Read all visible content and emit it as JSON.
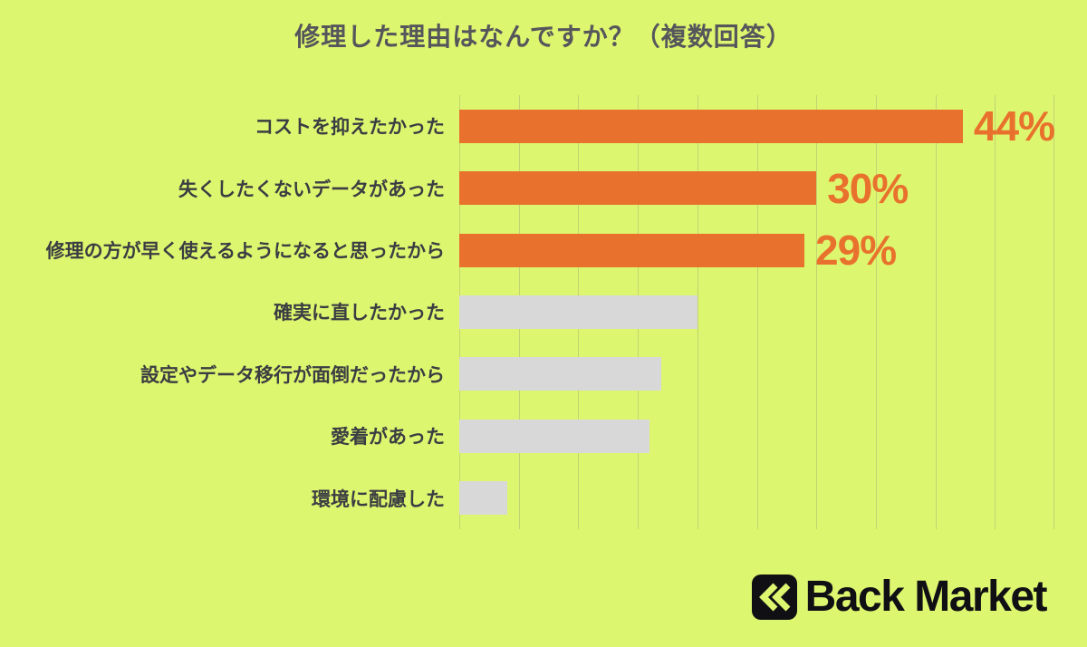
{
  "title": "修理した理由はなんですか？（複数回答）",
  "colors": {
    "background": "#DDF66F",
    "bar_highlight": "#E8722D",
    "bar_muted": "#D8D8D8",
    "value_label": "#E8722D",
    "title_text": "#54565B",
    "category_text": "#3A3D42",
    "gridline": "rgba(160,170,120,0.45)",
    "logo": "#101014"
  },
  "chart_data": {
    "type": "bar",
    "orientation": "horizontal",
    "title": "修理した理由はなんですか？（複数回答）",
    "xlabel": "",
    "ylabel": "",
    "xlim": [
      0,
      50
    ],
    "grid_step": 5,
    "grid": true,
    "legend": false,
    "categories": [
      "コストを抑えたかった",
      "失くしたくないデータがあった",
      "修理の方が早く使えるようになると思ったから",
      "確実に直したかった",
      "設定やデータ移行が面倒だったから",
      "愛着があった",
      "環境に配慮した"
    ],
    "values": [
      44,
      30,
      29,
      20,
      17,
      16,
      4
    ],
    "items": [
      {
        "label": "コストを抑えたかった",
        "value": 44,
        "value_label": "44%",
        "emphasis": true
      },
      {
        "label": "失くしたくないデータがあった",
        "value": 30,
        "value_label": "30%",
        "emphasis": true
      },
      {
        "label": "修理の方が早く使えるようになると思ったから",
        "value": 29,
        "value_label": "29%",
        "emphasis": true
      },
      {
        "label": "確実に直したかった",
        "value": 20,
        "value_label": "",
        "emphasis": false
      },
      {
        "label": "設定やデータ移行が面倒だったから",
        "value": 17,
        "value_label": "",
        "emphasis": false
      },
      {
        "label": "愛着があった",
        "value": 16,
        "value_label": "",
        "emphasis": false
      },
      {
        "label": "環境に配慮した",
        "value": 4,
        "value_label": "",
        "emphasis": false
      }
    ]
  },
  "logo": {
    "text": "Back Market",
    "icon": "double-chevron-left-icon"
  }
}
